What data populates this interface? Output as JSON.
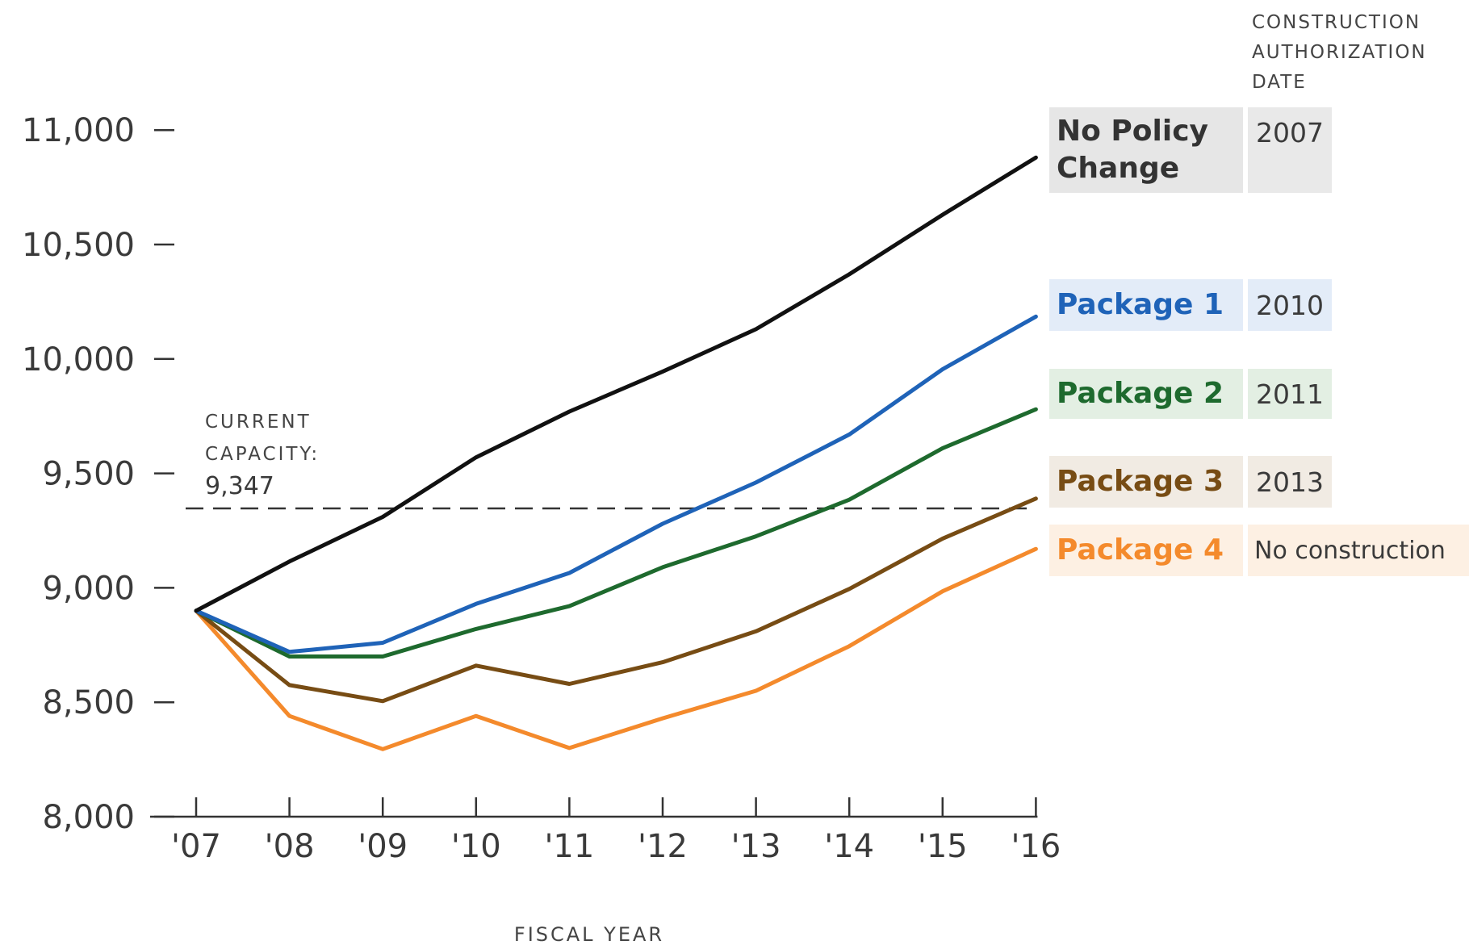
{
  "chart_data": {
    "type": "line",
    "x_label": "FISCAL YEAR",
    "categories": [
      "'07",
      "'08",
      "'09",
      "'10",
      "'11",
      "'12",
      "'13",
      "'14",
      "'15",
      "'16"
    ],
    "y_ticks": [
      8000,
      8500,
      9000,
      9500,
      10000,
      10500,
      11000
    ],
    "y_tick_labels": [
      "8,000",
      "8,500",
      "9,000",
      "9,500",
      "10,000",
      "10,500",
      "11,000"
    ],
    "ylim": [
      8000,
      11000
    ],
    "grid": false,
    "reference_line": {
      "value": 9347,
      "label_lines": [
        "CURRENT",
        "CAPACITY:",
        "9,347"
      ]
    },
    "legend_header": [
      "CONSTRUCTION",
      "AUTHORIZATION",
      "DATE"
    ],
    "series": [
      {
        "name": "No Policy Change",
        "date": "2007",
        "color": "#111111",
        "box": "#e6e6e6",
        "date_box": "#e9e9e9",
        "values": [
          8900,
          9115,
          9310,
          9570,
          9770,
          9945,
          10130,
          10370,
          10630,
          10880
        ]
      },
      {
        "name": "Package 1",
        "date": "2010",
        "color": "#1f63b8",
        "box": "#e3ecf8",
        "date_box": "#e3ecf8",
        "values": [
          8900,
          8720,
          8760,
          8930,
          9065,
          9280,
          9460,
          9670,
          9955,
          10185
        ]
      },
      {
        "name": "Package 2",
        "date": "2011",
        "color": "#1e6a2e",
        "box": "#e3efe3",
        "date_box": "#e3efe3",
        "values": [
          8900,
          8700,
          8700,
          8820,
          8920,
          9090,
          9225,
          9385,
          9610,
          9780
        ]
      },
      {
        "name": "Package 3",
        "date": "2013",
        "color": "#774c14",
        "box": "#f1ebe3",
        "date_box": "#f1ebe3",
        "values": [
          8900,
          8575,
          8505,
          8660,
          8580,
          8675,
          8810,
          8995,
          9215,
          9390
        ]
      },
      {
        "name": "Package 4",
        "date": "No construction",
        "color": "#f48a2c",
        "box": "#fdf0e3",
        "date_box": "#fdf0e3",
        "values": [
          8900,
          8440,
          8295,
          8440,
          8300,
          8430,
          8550,
          8745,
          8985,
          9170
        ]
      }
    ]
  }
}
